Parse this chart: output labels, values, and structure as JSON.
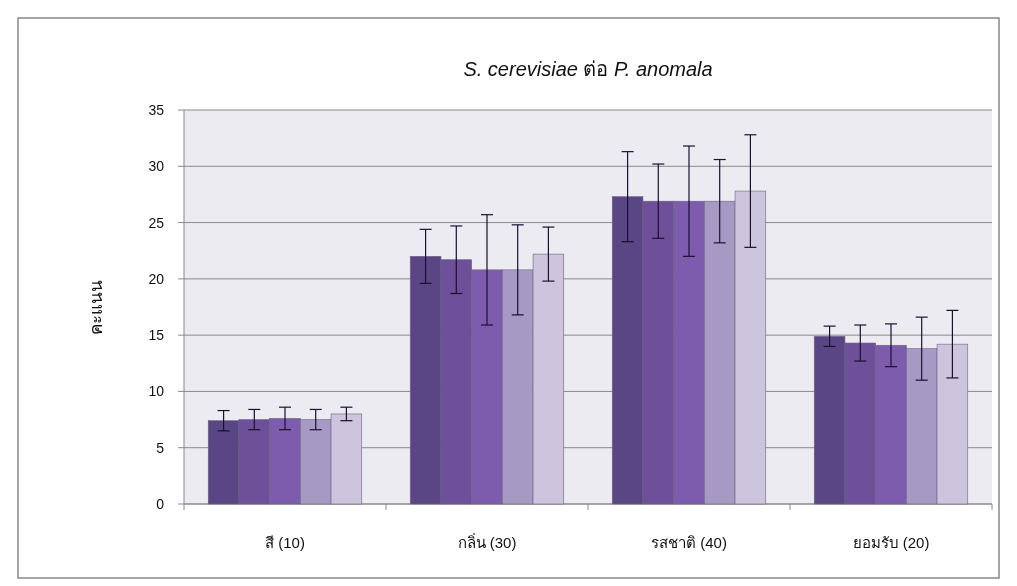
{
  "chart_data": {
    "type": "bar",
    "title": "S. cerevisiae ต่อ P. anomala",
    "ylabel": "คะแนน",
    "categories": [
      "สี (10)",
      "กลิ่น (30)",
      "รสชาติ (40)",
      "ยอมรับ (20)"
    ],
    "series": [
      {
        "color": "#5a4585",
        "values": [
          7.4,
          22.0,
          27.3,
          14.9
        ],
        "errors": [
          0.9,
          2.4,
          4.0,
          0.9
        ]
      },
      {
        "color": "#6e4f9a",
        "values": [
          7.5,
          21.7,
          26.9,
          14.3
        ],
        "errors": [
          0.9,
          3.0,
          3.3,
          1.6
        ]
      },
      {
        "color": "#7d5cae",
        "values": [
          7.6,
          20.8,
          26.9,
          14.1
        ],
        "errors": [
          1.0,
          4.9,
          4.9,
          1.9
        ]
      },
      {
        "color": "#a699c4",
        "values": [
          7.5,
          20.8,
          26.9,
          13.8
        ],
        "errors": [
          0.9,
          4.0,
          3.7,
          2.8
        ]
      },
      {
        "color": "#cdc5dd",
        "values": [
          8.0,
          22.2,
          27.8,
          14.2
        ],
        "errors": [
          0.6,
          2.4,
          5.0,
          3.0
        ]
      }
    ],
    "ylim": [
      0,
      35
    ],
    "yticks": [
      0,
      5,
      10,
      15,
      20,
      25,
      30,
      35
    ],
    "grid": "y"
  }
}
